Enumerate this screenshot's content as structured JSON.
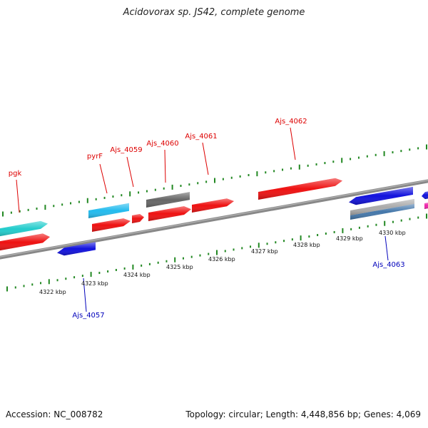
{
  "title": "Acidovorax sp. JS42, complete genome",
  "footer": {
    "accession": "Accession: NC_008782",
    "summary": "Topology: circular; Length: 4,448,856 bp; Genes: 4,069"
  },
  "colors": {
    "red": "#ee1111",
    "blue": "#1111dd",
    "cyan": "#22bbee",
    "teal": "#22cccc",
    "gray": "#666666",
    "silver": "#aaaaaa",
    "steel": "#4477aa",
    "magenta": "#ee22aa",
    "tick_green": "#228822",
    "axis_gray": "#888888",
    "label_red": "#dd0000",
    "label_blue": "#0000bb"
  },
  "scale": {
    "labels": [
      "4322 kbp",
      "4323 kbp",
      "4324 kbp",
      "4325 kbp",
      "4326 kbp",
      "4327 kbp",
      "4328 kbp",
      "4329 kbp",
      "4330 kbp"
    ]
  },
  "gene_labels": [
    {
      "name": "pgk",
      "color": "label_red"
    },
    {
      "name": "pyrF",
      "color": "label_red"
    },
    {
      "name": "Ajs_4059",
      "color": "label_red"
    },
    {
      "name": "Ajs_4060",
      "color": "label_red"
    },
    {
      "name": "Ajs_4061",
      "color": "label_red"
    },
    {
      "name": "Ajs_4062",
      "color": "label_red"
    },
    {
      "name": "Ajs_4057",
      "color": "label_blue"
    },
    {
      "name": "Ajs_4063",
      "color": "label_blue"
    }
  ]
}
